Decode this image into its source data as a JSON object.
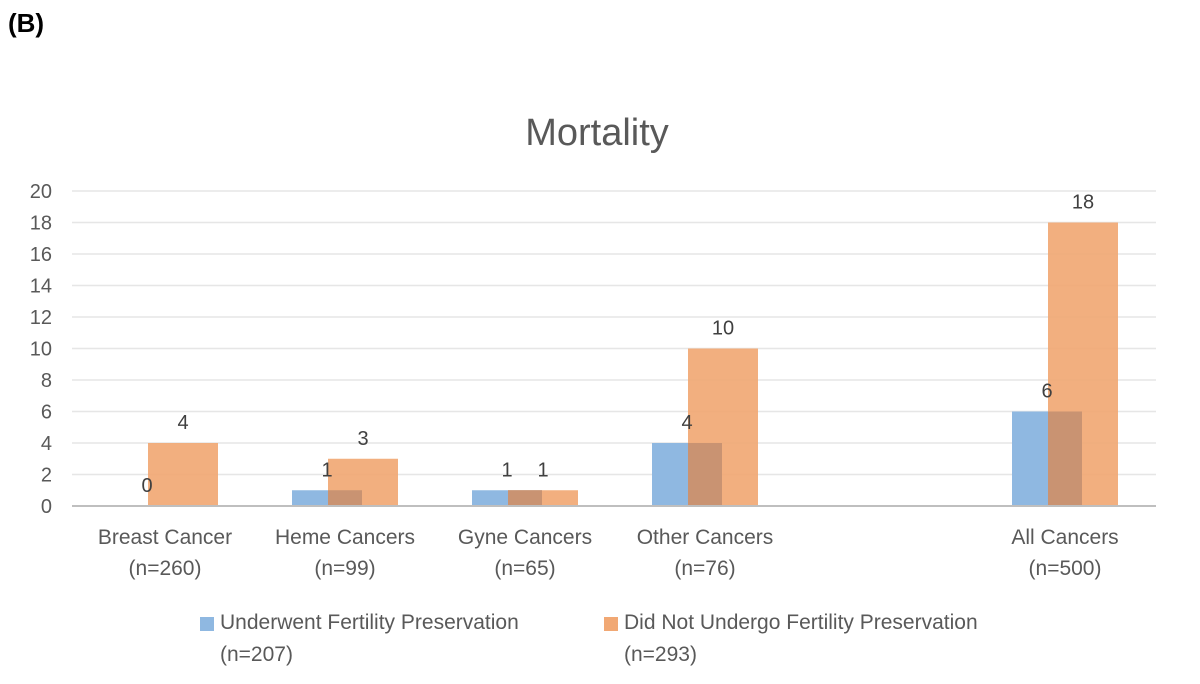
{
  "panel_label": "(B)",
  "colors": {
    "series1": "#8fb8e1",
    "series2": "#f1a874",
    "overlap": "#c99372",
    "grid": "#e6e6e6",
    "axis": "#bfbfbf",
    "text": "#595959"
  },
  "chart_data": {
    "type": "bar",
    "title": "Mortality",
    "xlabel": "",
    "ylabel": "",
    "ylim": [
      0,
      20
    ],
    "yticks": [
      0,
      2,
      4,
      6,
      8,
      10,
      12,
      14,
      16,
      18,
      20
    ],
    "grid": true,
    "legend_position": "bottom",
    "categories": [
      {
        "label": "Breast Cancer",
        "sublabel": "(n=260)"
      },
      {
        "label": "Heme Cancers",
        "sublabel": "(n=99)"
      },
      {
        "label": "Gyne Cancers",
        "sublabel": "(n=65)"
      },
      {
        "label": "Other Cancers",
        "sublabel": "(n=76)"
      },
      {
        "label": "All Cancers",
        "sublabel": "(n=500)"
      }
    ],
    "series": [
      {
        "name": "Underwent Fertility Preservation",
        "name_sub": "(n=207)",
        "values": [
          0,
          1,
          1,
          4,
          6
        ]
      },
      {
        "name": "Did Not Undergo Fertility Preservation",
        "name_sub": "(n=293)",
        "values": [
          4,
          3,
          1,
          10,
          18
        ]
      }
    ]
  }
}
